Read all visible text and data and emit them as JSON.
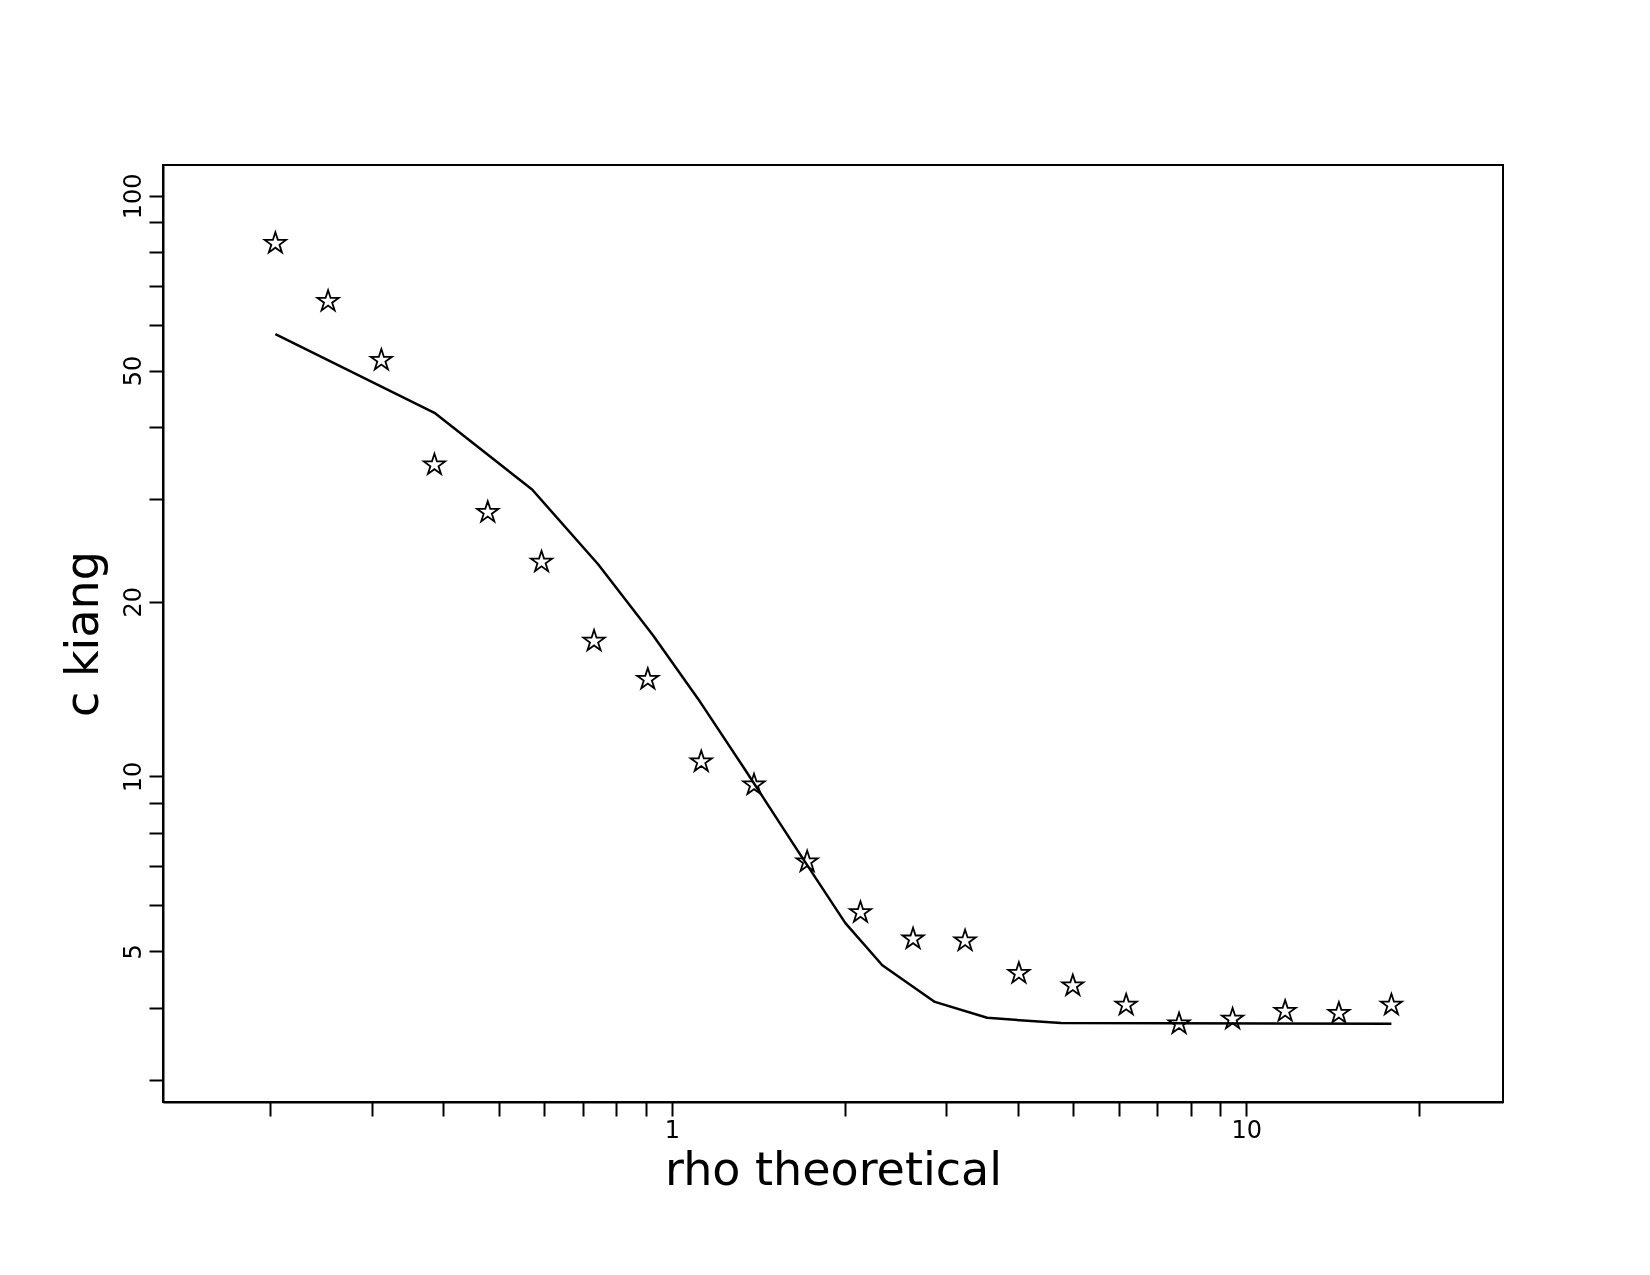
{
  "chart_data": {
    "type": "scatter",
    "xlabel": "rho theoretical",
    "ylabel": "c kiang",
    "log": "xy",
    "grid": false,
    "xlim": [
      0.13,
      28
    ],
    "ylim": [
      2.75,
      113
    ],
    "xticks": [
      {
        "value": 0.2,
        "label": null
      },
      {
        "value": 0.3,
        "label": null
      },
      {
        "value": 0.4,
        "label": null
      },
      {
        "value": 0.5,
        "label": null
      },
      {
        "value": 0.6,
        "label": null
      },
      {
        "value": 0.7,
        "label": null
      },
      {
        "value": 0.8,
        "label": null
      },
      {
        "value": 0.9,
        "label": null
      },
      1,
      {
        "value": 2,
        "label": null
      },
      {
        "value": 3,
        "label": null
      },
      {
        "value": 4,
        "label": null
      },
      {
        "value": 5,
        "label": null
      },
      {
        "value": 6,
        "label": null
      },
      {
        "value": 7,
        "label": null
      },
      {
        "value": 8,
        "label": null
      },
      {
        "value": 9,
        "label": null
      },
      10,
      {
        "value": 20,
        "label": null
      }
    ],
    "yticks": [
      {
        "value": 3,
        "label": null
      },
      {
        "value": 4,
        "label": null
      },
      5,
      {
        "value": 6,
        "label": null
      },
      {
        "value": 7,
        "label": null
      },
      {
        "value": 8,
        "label": null
      },
      {
        "value": 9,
        "label": null
      },
      10,
      20,
      {
        "value": 30,
        "label": null
      },
      {
        "value": 40,
        "label": null
      },
      50,
      {
        "value": 60,
        "label": null
      },
      {
        "value": 70,
        "label": null
      },
      {
        "value": 80,
        "label": null
      },
      {
        "value": 90,
        "label": null
      },
      100
    ],
    "series": [
      {
        "marker": "star",
        "color": "#000000",
        "x": [
          0.204,
          0.252,
          0.312,
          0.386,
          0.478,
          0.593,
          0.732,
          0.908,
          1.125,
          1.39,
          1.72,
          2.13,
          2.63,
          3.24,
          4.02,
          4.99,
          6.18,
          7.64,
          9.47,
          11.69,
          14.5,
          17.9
        ],
        "values": [
          82.8,
          65.8,
          52.1,
          34.4,
          28.5,
          23.4,
          17.1,
          14.7,
          10.6,
          9.67,
          7.13,
          5.83,
          5.25,
          5.21,
          4.58,
          4.36,
          4.04,
          3.75,
          3.82,
          3.94,
          3.91,
          4.04
        ]
      },
      {
        "type": "line",
        "line_style": "solid",
        "color": "#000000",
        "x": [
          0.204,
          0.386,
          0.571,
          0.744,
          0.927,
          1.111,
          1.343,
          1.659,
          2.005,
          2.325,
          2.87,
          3.54,
          4.76,
          17.9
        ],
        "values": [
          57.8,
          42.3,
          31.2,
          23.2,
          17.5,
          13.6,
          10.25,
          7.43,
          5.59,
          4.73,
          4.09,
          3.84,
          3.76,
          3.75
        ]
      }
    ]
  }
}
